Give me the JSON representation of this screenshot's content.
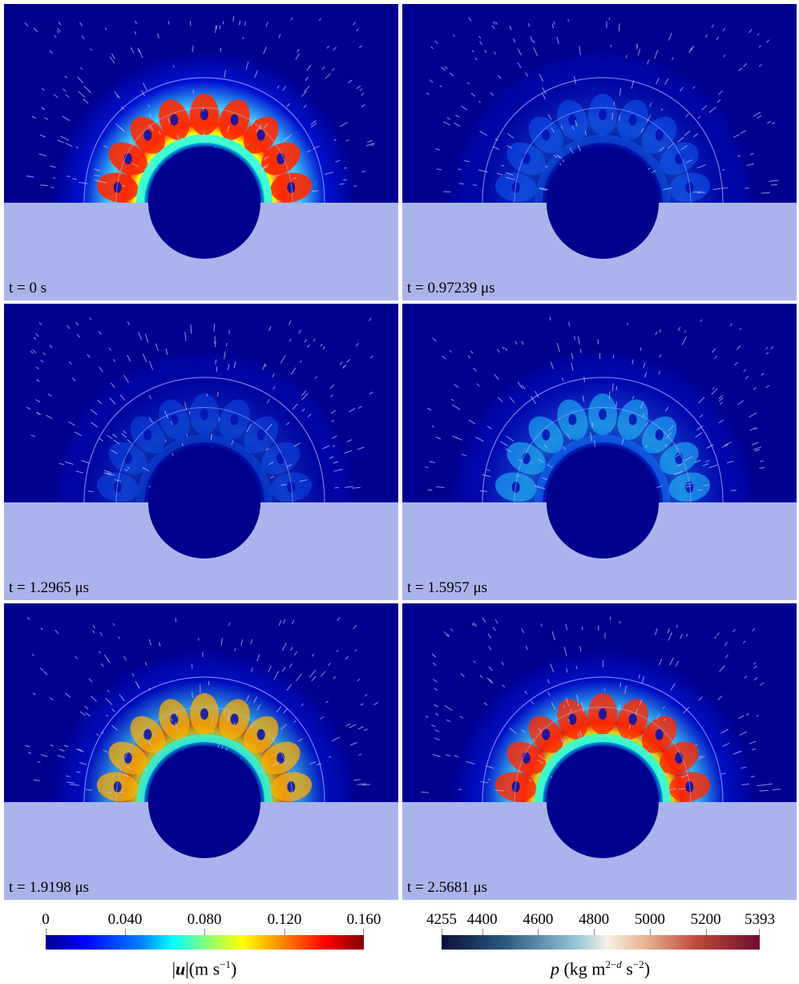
{
  "panels": [
    {
      "time_label": "t = 0 s",
      "ring_intensity": 1.0,
      "pressure_state": "uniform"
    },
    {
      "time_label": "t = 0.97239 μs",
      "ring_intensity": 0.3,
      "pressure_state": "compressed"
    },
    {
      "time_label": "t = 1.2965 μs",
      "ring_intensity": 0.15,
      "pressure_state": "compressed"
    },
    {
      "time_label": "t = 1.5957 μs",
      "ring_intensity": 0.45,
      "pressure_state": "compressed"
    },
    {
      "time_label": "t = 1.9198 μs",
      "ring_intensity": 0.72,
      "pressure_state": "mild"
    },
    {
      "time_label": "t = 2.5681 μs",
      "ring_intensity": 0.85,
      "pressure_state": "uniform"
    }
  ],
  "colorbars": {
    "velocity": {
      "ticks": [
        "0",
        "0.040",
        "0.080",
        "0.120",
        "0.160"
      ],
      "title": "|u|(m s⁻¹)",
      "colormap": "jet"
    },
    "pressure": {
      "ticks": [
        "4255",
        "4400",
        "4600",
        "4800",
        "5000",
        "5200",
        "5393"
      ],
      "tick_values": [
        4255,
        4400,
        4600,
        4800,
        5000,
        5200,
        5393
      ],
      "title": "p (kg m²⁻ᵈ s⁻²)",
      "colormap": "diverging-navy-cream-maroon"
    }
  },
  "colors": {
    "background_field": "#00008f",
    "solid_region": "#aab4ec",
    "white": "#ffffff"
  }
}
